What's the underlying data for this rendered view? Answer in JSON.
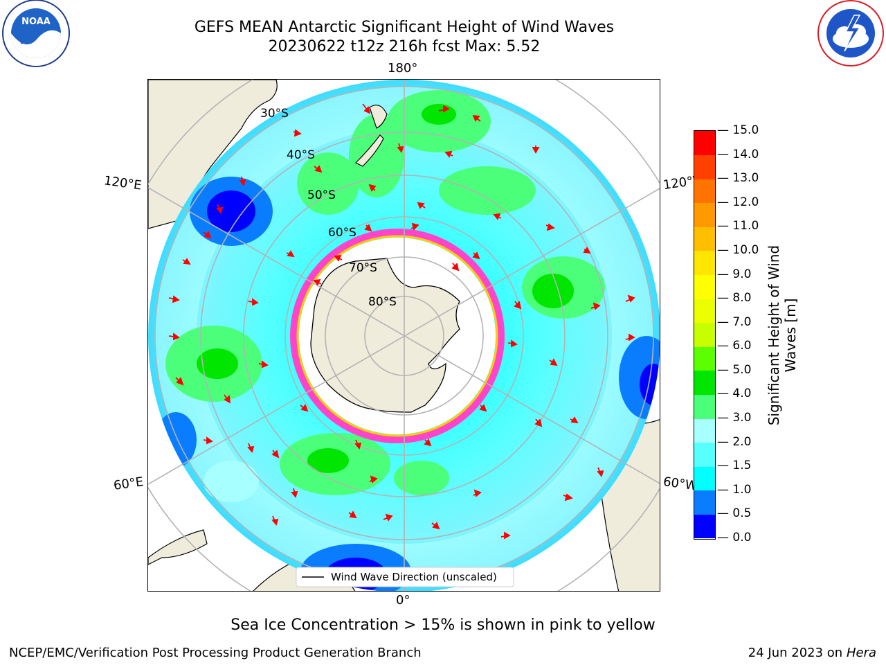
{
  "header": {
    "title_line1": "GEFS MEAN Antarctic Significant Height of Wind Waves",
    "title_line2": "20230622 t12z 216h fcst   Max: 5.52"
  },
  "logos": {
    "left": {
      "text": "NOAA",
      "ring_top": "NATIONAL OCEANIC AND ATMOSPHERIC ADMINISTRATION",
      "ring_bottom": "U.S. DEPARTMENT OF COMMERCE"
    },
    "right": {
      "ring_text": "NATIONAL WEATHER SERVICE"
    }
  },
  "map": {
    "lon_labels": {
      "top": "180°",
      "bottom": "0°",
      "left_upper": "120°E",
      "left_lower": "60°E",
      "right_upper": "120°W",
      "right_lower": "60°W"
    },
    "lat_labels": [
      "30°S",
      "40°S",
      "50°S",
      "60°S",
      "70°S",
      "80°S"
    ],
    "legend_label": "Wind Wave Direction (unscaled)"
  },
  "colorbar": {
    "label": "Significant Height of Wind Waves [m]",
    "ticks": [
      "0.0",
      "0.5",
      "1.0",
      "1.5",
      "2.0",
      "3.0",
      "4.0",
      "5.0",
      "6.0",
      "7.0",
      "8.0",
      "9.0",
      "10.0",
      "11.0",
      "12.0",
      "13.0",
      "14.0",
      "15.0"
    ],
    "colors": [
      "#0000ff",
      "#0a7dff",
      "#00ffff",
      "#57ffff",
      "#a8ffff",
      "#4cff7a",
      "#00e600",
      "#5cff00",
      "#c8ff00",
      "#ebff00",
      "#ffff00",
      "#ffe600",
      "#ffbf00",
      "#ff9900",
      "#ff7300",
      "#ff4000",
      "#ff0000"
    ]
  },
  "chart_data": {
    "type": "heatmap",
    "title": "GEFS MEAN Antarctic Significant Height of Wind Waves",
    "subtitle": "20230622 t12z 216h fcst   Max: 5.52",
    "field_max": 5.52,
    "units": "m",
    "scale_range": [
      0,
      15
    ],
    "projection": "south-polar-stereographic"
  },
  "footer": {
    "note": "Sea Ice Concentration > 15% is shown in pink to yellow",
    "credit": "NCEP/EMC/Verification Post Processing Product Generation Branch",
    "date": "24 Jun 2023 on",
    "machine": "Hera"
  }
}
